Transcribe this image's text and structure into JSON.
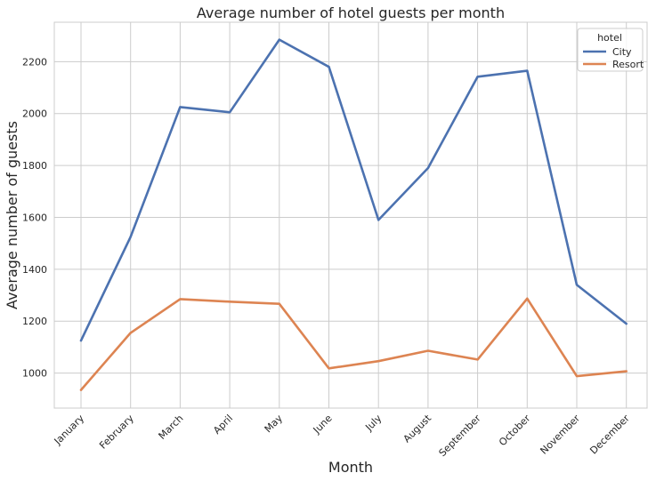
{
  "chart_data": {
    "type": "line",
    "title": "Average number of hotel guests per month",
    "xlabel": "Month",
    "ylabel": "Average number of guests",
    "categories": [
      "January",
      "February",
      "March",
      "April",
      "May",
      "June",
      "July",
      "August",
      "September",
      "October",
      "November",
      "December"
    ],
    "series": [
      {
        "name": "City",
        "color": "#4c72b0",
        "values": [
          1125,
          1525,
          2025,
          2005,
          2285,
          2180,
          1590,
          1790,
          2142,
          2165,
          1340,
          1190
        ]
      },
      {
        "name": "Resort",
        "color": "#dd8452",
        "values": [
          935,
          1155,
          1285,
          1275,
          1267,
          1018,
          1046,
          1086,
          1052,
          1287,
          988,
          1007
        ]
      }
    ],
    "ylim": [
      865,
      2352
    ],
    "yticks": [
      1000,
      1200,
      1400,
      1600,
      1800,
      2000,
      2200
    ],
    "grid": true,
    "legend": {
      "title": "hotel",
      "placement": "top-right"
    }
  }
}
